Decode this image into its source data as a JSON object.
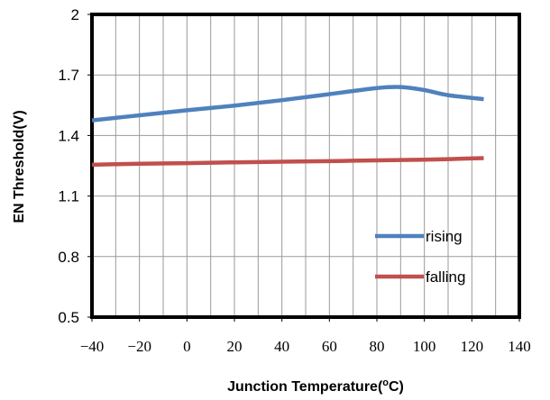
{
  "chart_data": {
    "type": "line",
    "title": "",
    "xlabel": "Junction Temperature(",
    "xlabel_sup": "o",
    "xlabel_tail": "C)",
    "ylabel": "EN Threshold(V)",
    "xlim": [
      -40,
      140
    ],
    "ylim": [
      0.5,
      2
    ],
    "x_ticks": [
      "−40",
      "−20",
      "0",
      "20",
      "40",
      "60",
      "80",
      "100",
      "120",
      "140"
    ],
    "x_tick_values": [
      -40,
      -20,
      0,
      20,
      40,
      60,
      80,
      100,
      120,
      140
    ],
    "y_ticks": [
      "0.5",
      "0.8",
      "1.1",
      "1.4",
      "1.7",
      "2"
    ],
    "y_tick_values": [
      0.5,
      0.8,
      1.1,
      1.4,
      1.7,
      2.0
    ],
    "grid": true,
    "legend_position": "bottom-right",
    "series": [
      {
        "name": "rising",
        "color": "#4f81bd",
        "x": [
          -40,
          -20,
          0,
          20,
          40,
          60,
          80,
          90,
          100,
          110,
          125
        ],
        "y": [
          1.475,
          1.5,
          1.525,
          1.548,
          1.575,
          1.605,
          1.635,
          1.64,
          1.625,
          1.6,
          1.58
        ]
      },
      {
        "name": "falling",
        "color": "#c0504d",
        "x": [
          -40,
          -20,
          0,
          20,
          40,
          60,
          80,
          100,
          125
        ],
        "y": [
          1.255,
          1.26,
          1.263,
          1.267,
          1.27,
          1.273,
          1.277,
          1.28,
          1.288
        ]
      }
    ]
  }
}
